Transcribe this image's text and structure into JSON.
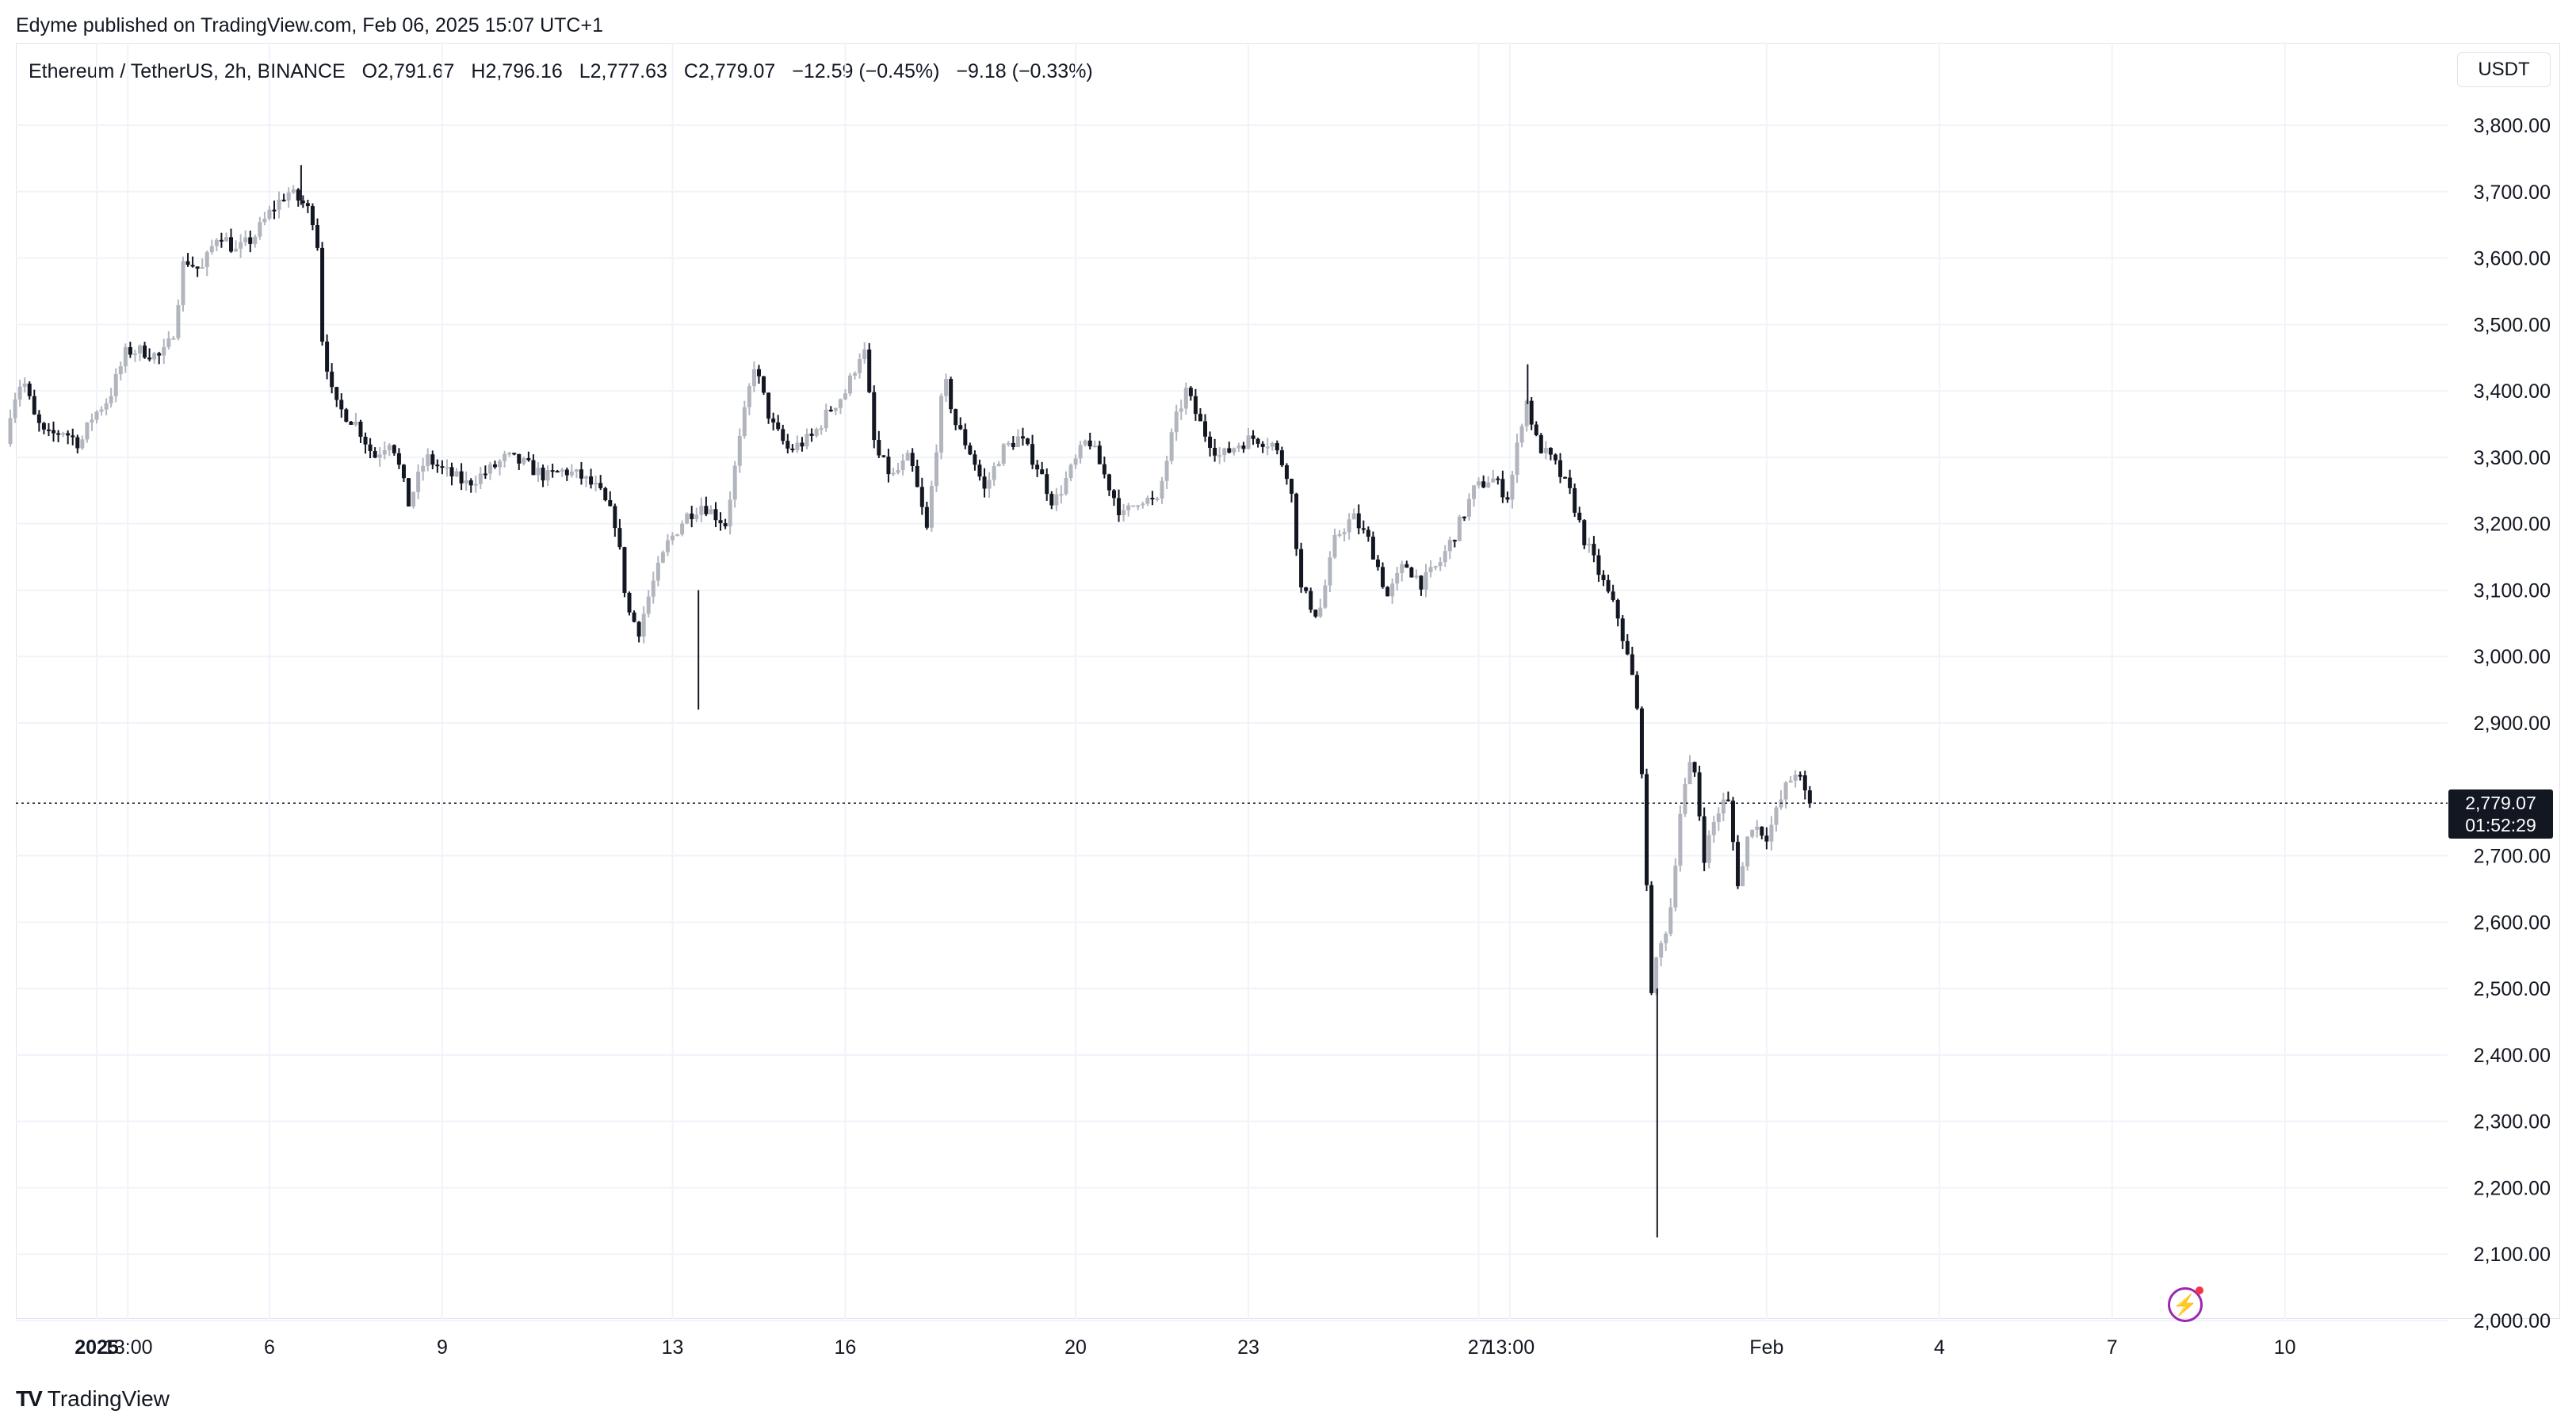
{
  "header": {
    "published": "Edyme published on TradingView.com, Feb 06, 2025 15:07 UTC+1",
    "symbol": "Ethereum / TetherUS, 2h, BINANCE",
    "open": "O2,791.67",
    "high": "H2,796.16",
    "low": "L2,777.63",
    "close": "C2,779.07",
    "change": "−12.59 (−0.45%)",
    "change2": "−9.18 (−0.33%)",
    "currency": "USDT"
  },
  "last_price": {
    "value": "2,779.07",
    "countdown": "01:52:29"
  },
  "footer": {
    "brand": "TradingView",
    "logo_icon": "tradingview-logo-icon"
  },
  "colors": {
    "up": "#b2b5be",
    "down": "#131722",
    "grid": "#f0f3fa",
    "axis_text": "#131722"
  },
  "chart_data": {
    "type": "candlestick",
    "ylim": [
      2000,
      3800
    ],
    "y_ticks": [
      {
        "v": 3800,
        "label": "3,800.00"
      },
      {
        "v": 3700,
        "label": "3,700.00"
      },
      {
        "v": 3600,
        "label": "3,600.00"
      },
      {
        "v": 3500,
        "label": "3,500.00"
      },
      {
        "v": 3400,
        "label": "3,400.00"
      },
      {
        "v": 3300,
        "label": "3,300.00"
      },
      {
        "v": 3200,
        "label": "3,200.00"
      },
      {
        "v": 3100,
        "label": "3,100.00"
      },
      {
        "v": 3000,
        "label": "3,000.00"
      },
      {
        "v": 2900,
        "label": "2,900.00"
      },
      {
        "v": 2700,
        "label": "2,700.00"
      },
      {
        "v": 2600,
        "label": "2,600.00"
      },
      {
        "v": 2500,
        "label": "2,500.00"
      },
      {
        "v": 2400,
        "label": "2,400.00"
      },
      {
        "v": 2300,
        "label": "2,300.00"
      },
      {
        "v": 2200,
        "label": "2,200.00"
      },
      {
        "v": 2100,
        "label": "2,100.00"
      },
      {
        "v": 2000,
        "label": "2,000.00"
      }
    ],
    "x_ticks": [
      {
        "t": 3,
        "label": "2025",
        "bold": true
      },
      {
        "t": 3.54,
        "label": "13:00"
      },
      {
        "t": 6,
        "label": "6"
      },
      {
        "t": 9,
        "label": "9"
      },
      {
        "t": 13,
        "label": "13"
      },
      {
        "t": 16,
        "label": "16"
      },
      {
        "t": 20,
        "label": "20"
      },
      {
        "t": 23,
        "label": "23"
      },
      {
        "t": 27,
        "label": "27"
      },
      {
        "t": 27.54,
        "label": "13:00"
      },
      {
        "t": 32,
        "label": "Feb"
      },
      {
        "t": 35,
        "label": "4"
      },
      {
        "t": 38,
        "label": "7"
      },
      {
        "t": 41,
        "label": "10"
      }
    ],
    "x_unit": "days since Dec 29, 2024",
    "last_close": 2779.07,
    "path": [
      [
        1.5,
        3320
      ],
      [
        1.6,
        3380
      ],
      [
        1.8,
        3420
      ],
      [
        2.0,
        3360
      ],
      [
        2.2,
        3330
      ],
      [
        2.5,
        3340
      ],
      [
        2.8,
        3320
      ],
      [
        3.0,
        3360
      ],
      [
        3.3,
        3390
      ],
      [
        3.6,
        3460
      ],
      [
        3.9,
        3460
      ],
      [
        4.2,
        3450
      ],
      [
        4.4,
        3480
      ],
      [
        4.6,
        3600
      ],
      [
        4.9,
        3580
      ],
      [
        5.2,
        3640
      ],
      [
        5.5,
        3610
      ],
      [
        5.8,
        3630
      ],
      [
        6.1,
        3670
      ],
      [
        6.4,
        3700
      ],
      [
        6.7,
        3680
      ],
      [
        6.9,
        3650
      ],
      [
        7.0,
        3480
      ],
      [
        7.2,
        3380
      ],
      [
        7.6,
        3350
      ],
      [
        7.9,
        3300
      ],
      [
        8.2,
        3330
      ],
      [
        8.5,
        3230
      ],
      [
        8.8,
        3300
      ],
      [
        9.1,
        3280
      ],
      [
        9.5,
        3260
      ],
      [
        9.9,
        3280
      ],
      [
        10.2,
        3300
      ],
      [
        10.5,
        3290
      ],
      [
        10.9,
        3270
      ],
      [
        11.2,
        3280
      ],
      [
        11.5,
        3270
      ],
      [
        11.8,
        3250
      ],
      [
        12.1,
        3200
      ],
      [
        12.3,
        3070
      ],
      [
        12.5,
        3040
      ],
      [
        12.7,
        3100
      ],
      [
        13.0,
        3170
      ],
      [
        13.3,
        3210
      ],
      [
        13.6,
        3230
      ],
      [
        14.0,
        3200
      ],
      [
        14.3,
        3350
      ],
      [
        14.5,
        3440
      ],
      [
        14.8,
        3350
      ],
      [
        15.1,
        3310
      ],
      [
        15.5,
        3330
      ],
      [
        15.8,
        3370
      ],
      [
        16.1,
        3400
      ],
      [
        16.4,
        3470
      ],
      [
        16.6,
        3310
      ],
      [
        16.9,
        3270
      ],
      [
        17.2,
        3300
      ],
      [
        17.5,
        3190
      ],
      [
        17.8,
        3420
      ],
      [
        18.0,
        3350
      ],
      [
        18.3,
        3300
      ],
      [
        18.5,
        3250
      ],
      [
        18.8,
        3310
      ],
      [
        19.1,
        3330
      ],
      [
        19.4,
        3290
      ],
      [
        19.7,
        3230
      ],
      [
        20.0,
        3280
      ],
      [
        20.3,
        3330
      ],
      [
        20.6,
        3270
      ],
      [
        20.9,
        3210
      ],
      [
        21.2,
        3240
      ],
      [
        21.5,
        3230
      ],
      [
        21.8,
        3350
      ],
      [
        22.0,
        3400
      ],
      [
        22.3,
        3340
      ],
      [
        22.6,
        3300
      ],
      [
        22.9,
        3320
      ],
      [
        23.2,
        3330
      ],
      [
        23.5,
        3320
      ],
      [
        23.8,
        3270
      ],
      [
        24.0,
        3100
      ],
      [
        24.3,
        3060
      ],
      [
        24.6,
        3180
      ],
      [
        24.9,
        3210
      ],
      [
        25.2,
        3170
      ],
      [
        25.5,
        3090
      ],
      [
        25.8,
        3140
      ],
      [
        26.1,
        3110
      ],
      [
        26.4,
        3140
      ],
      [
        26.7,
        3190
      ],
      [
        27.0,
        3250
      ],
      [
        27.3,
        3270
      ],
      [
        27.6,
        3240
      ],
      [
        27.9,
        3390
      ],
      [
        28.1,
        3320
      ],
      [
        28.4,
        3290
      ],
      [
        28.7,
        3240
      ],
      [
        28.9,
        3180
      ],
      [
        29.2,
        3120
      ],
      [
        29.5,
        3060
      ],
      [
        29.8,
        2950
      ],
      [
        29.95,
        2800
      ],
      [
        30.05,
        2490
      ],
      [
        30.2,
        2550
      ],
      [
        30.4,
        2610
      ],
      [
        30.6,
        2780
      ],
      [
        30.8,
        2850
      ],
      [
        31.0,
        2700
      ],
      [
        31.2,
        2760
      ],
      [
        31.4,
        2790
      ],
      [
        31.6,
        2650
      ],
      [
        31.8,
        2750
      ],
      [
        32.1,
        2730
      ],
      [
        32.4,
        2800
      ],
      [
        32.6,
        2830
      ],
      [
        32.8,
        2779
      ]
    ]
  }
}
